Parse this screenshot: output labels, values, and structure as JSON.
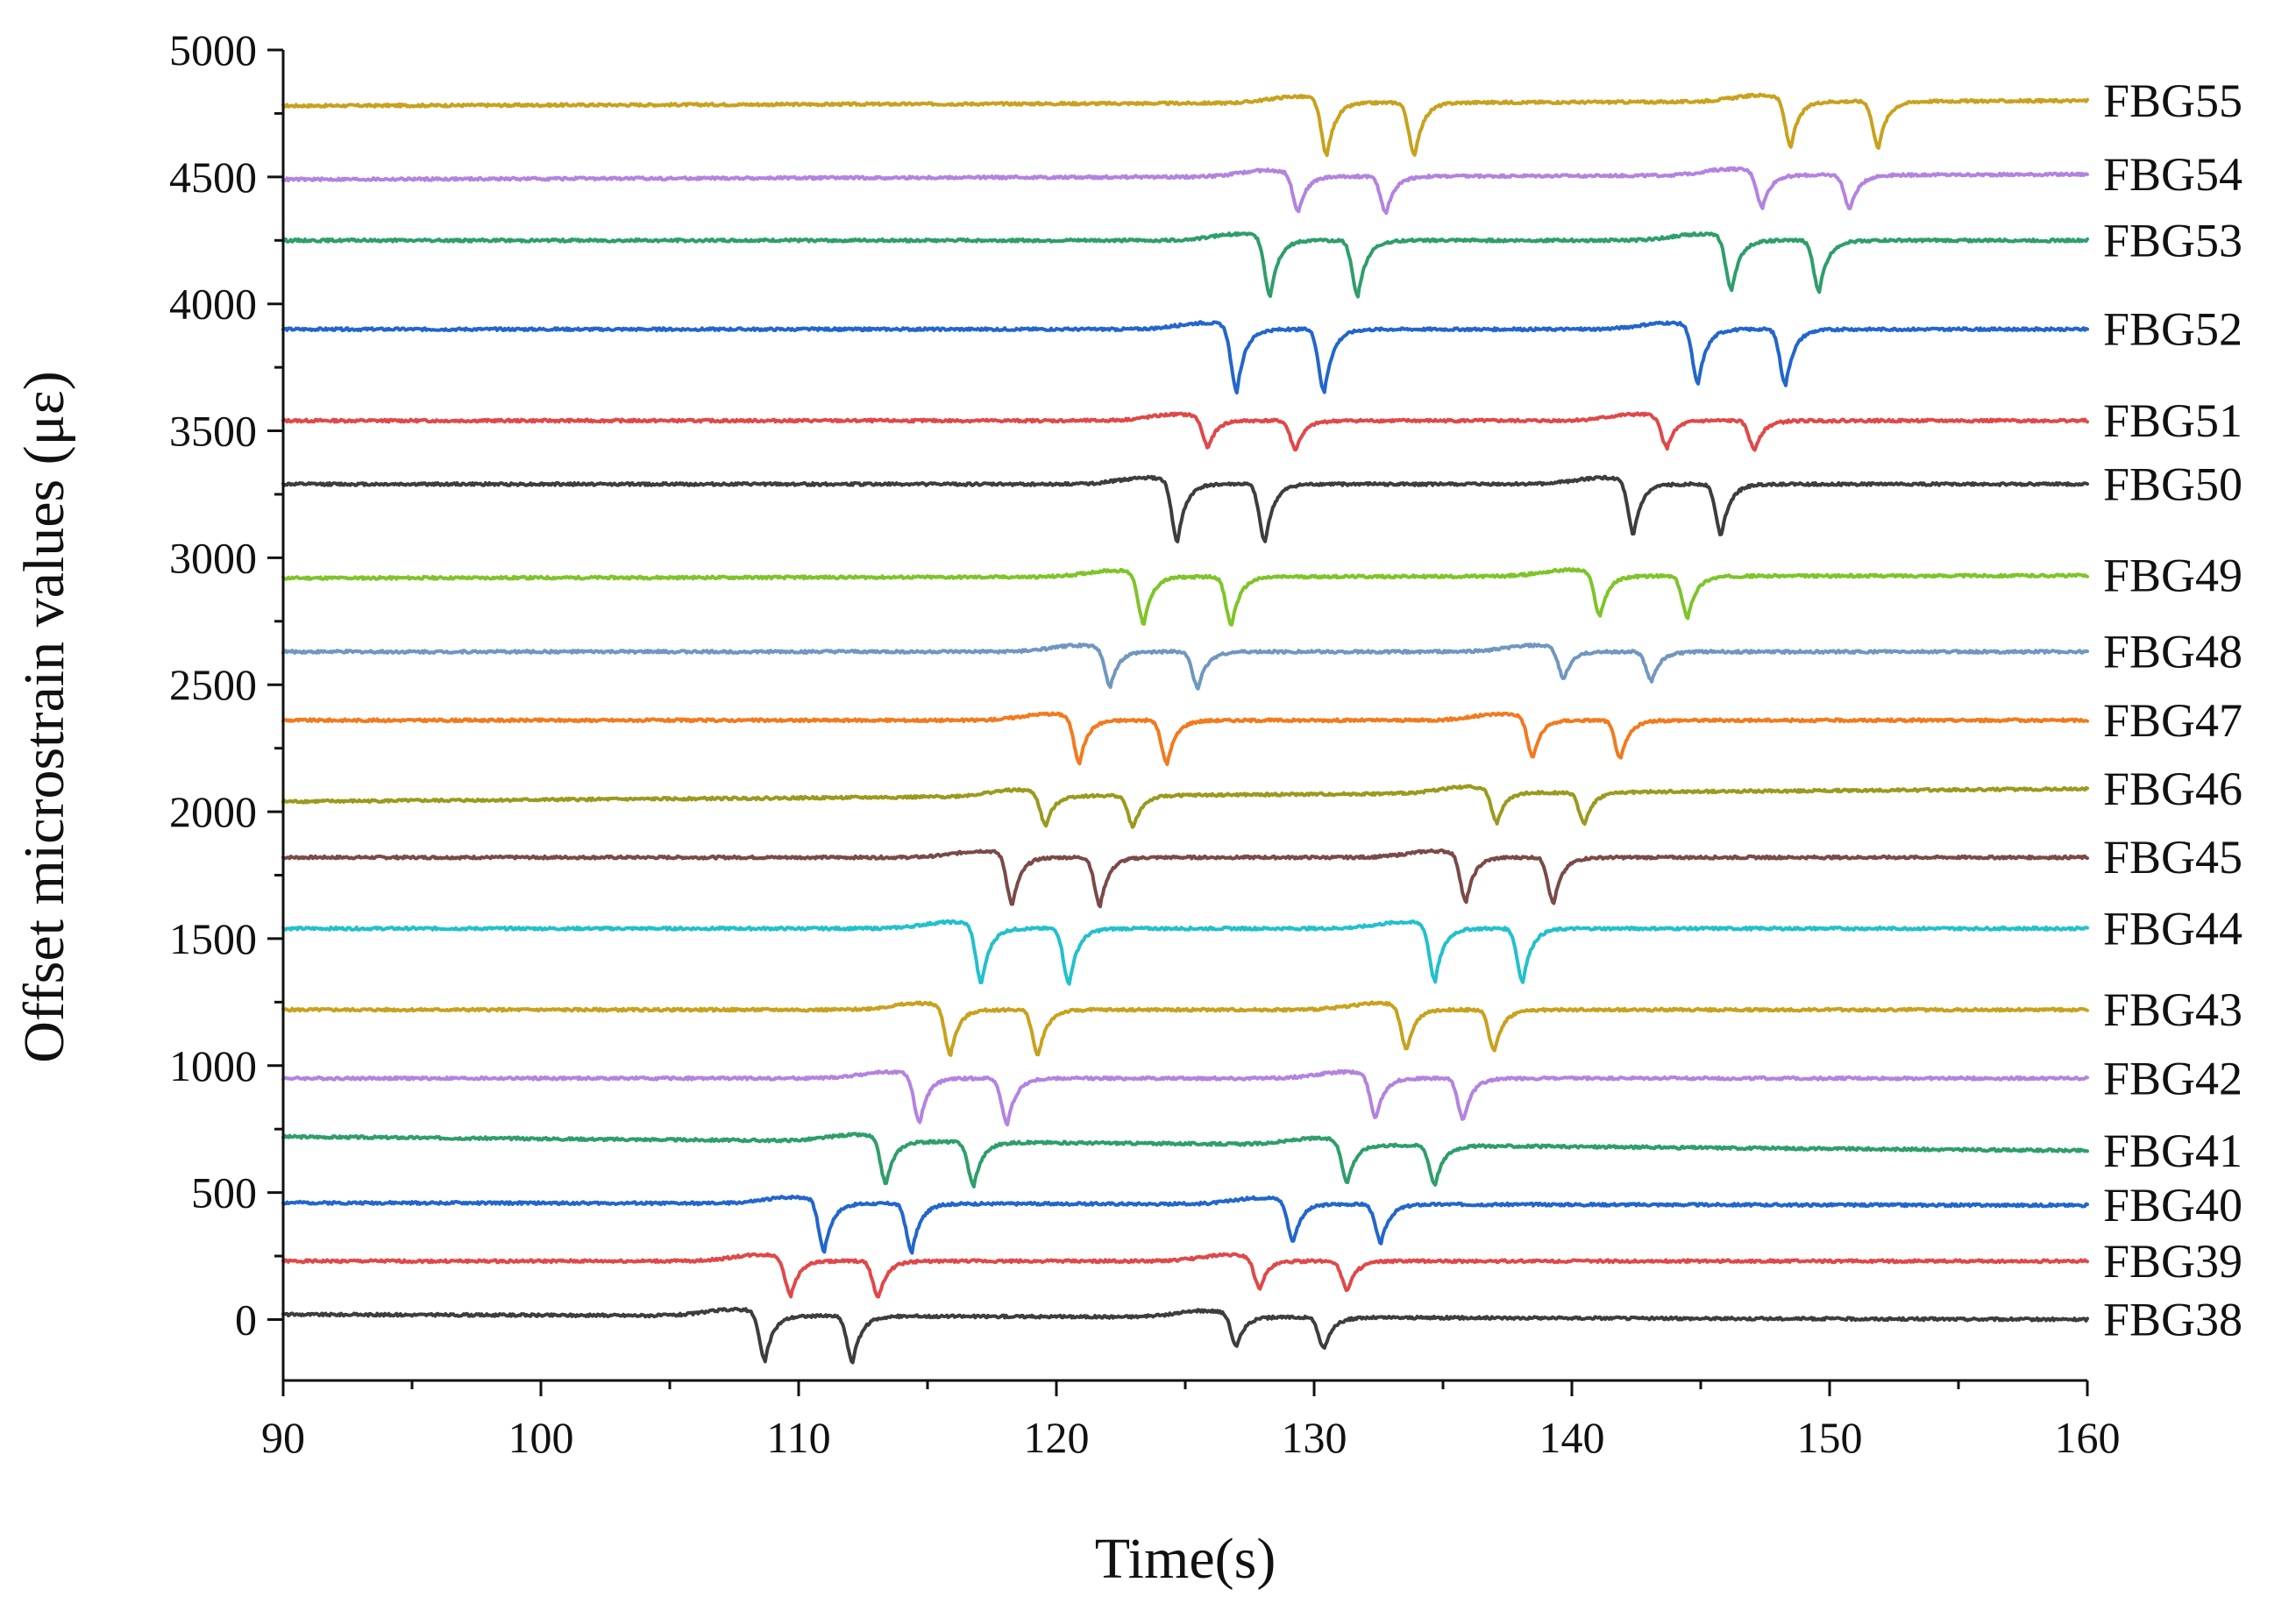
{
  "chart_data": {
    "type": "line",
    "title": "",
    "xlabel": "Time(s)",
    "ylabel": "Offset microstrain values (με)",
    "xlim": [
      90,
      160
    ],
    "ylim": [
      -240,
      5000
    ],
    "x_ticks": [
      90,
      100,
      110,
      120,
      130,
      140,
      150,
      160
    ],
    "y_ticks": [
      0,
      500,
      1000,
      1500,
      2000,
      2500,
      3000,
      3500,
      4000,
      4500,
      5000
    ],
    "grid": false,
    "legend": "right, label at end of each series",
    "dip_spacing_s": 3.4,
    "dip_width_s": 0.55,
    "series": [
      {
        "name": "FBG38",
        "color": "#3d3d3d",
        "baseline_start": 20,
        "baseline_end": 0,
        "dip1_start": 108.7,
        "dip2_start": 127.0,
        "depth1": 190,
        "depth2": 130
      },
      {
        "name": "FBG39",
        "color": "#e04848",
        "baseline_start": 230,
        "baseline_end": 230,
        "dip1_start": 109.7,
        "dip2_start": 127.9,
        "depth1": 150,
        "depth2": 120
      },
      {
        "name": "FBG40",
        "color": "#2266cc",
        "baseline_start": 460,
        "baseline_end": 450,
        "dip1_start": 111.0,
        "dip2_start": 129.2,
        "depth1": 200,
        "depth2": 160
      },
      {
        "name": "FBG41",
        "color": "#2e9e6a",
        "baseline_start": 720,
        "baseline_end": 665,
        "dip1_start": 113.4,
        "dip2_start": 131.3,
        "depth1": 180,
        "depth2": 160
      },
      {
        "name": "FBG42",
        "color": "#b383e0",
        "baseline_start": 950,
        "baseline_end": 950,
        "dip1_start": 114.7,
        "dip2_start": 132.4,
        "depth1": 190,
        "depth2": 170
      },
      {
        "name": "FBG43",
        "color": "#c8a21e",
        "baseline_start": 1220,
        "baseline_end": 1220,
        "dip1_start": 115.9,
        "dip2_start": 133.6,
        "depth1": 190,
        "depth2": 170
      },
      {
        "name": "FBG44",
        "color": "#22c0cc",
        "baseline_start": 1540,
        "baseline_end": 1540,
        "dip1_start": 117.1,
        "dip2_start": 134.7,
        "depth1": 230,
        "depth2": 220
      },
      {
        "name": "FBG45",
        "color": "#7a4a48",
        "baseline_start": 1820,
        "baseline_end": 1820,
        "dip1_start": 118.3,
        "dip2_start": 135.9,
        "depth1": 200,
        "depth2": 190
      },
      {
        "name": "FBG46",
        "color": "#9a9a1e",
        "baseline_start": 2040,
        "baseline_end": 2090,
        "dip1_start": 119.6,
        "dip2_start": 137.1,
        "depth1": 130,
        "depth2": 130
      },
      {
        "name": "FBG47",
        "color": "#f27a1e",
        "baseline_start": 2360,
        "baseline_end": 2360,
        "dip1_start": 120.9,
        "dip2_start": 138.5,
        "depth1": 180,
        "depth2": 160
      },
      {
        "name": "FBG48",
        "color": "#6f97bf",
        "baseline_start": 2630,
        "baseline_end": 2630,
        "dip1_start": 122.1,
        "dip2_start": 139.7,
        "depth1": 150,
        "depth2": 120
      },
      {
        "name": "FBG49",
        "color": "#7ec42a",
        "baseline_start": 2920,
        "baseline_end": 2930,
        "dip1_start": 123.4,
        "dip2_start": 141.1,
        "depth1": 200,
        "depth2": 170
      },
      {
        "name": "FBG50",
        "color": "#3d3d3d",
        "baseline_start": 3290,
        "baseline_end": 3290,
        "dip1_start": 124.7,
        "dip2_start": 142.4,
        "depth1": 240,
        "depth2": 210
      },
      {
        "name": "FBG51",
        "color": "#e04848",
        "baseline_start": 3540,
        "baseline_end": 3540,
        "dip1_start": 125.9,
        "dip2_start": 143.7,
        "depth1": 120,
        "depth2": 120
      },
      {
        "name": "FBG52",
        "color": "#2266cc",
        "baseline_start": 3900,
        "baseline_end": 3900,
        "dip1_start": 127.0,
        "dip2_start": 144.9,
        "depth1": 260,
        "depth2": 230
      },
      {
        "name": "FBG53",
        "color": "#2e9e6a",
        "baseline_start": 4250,
        "baseline_end": 4250,
        "dip1_start": 128.3,
        "dip2_start": 146.2,
        "depth1": 230,
        "depth2": 210
      },
      {
        "name": "FBG54",
        "color": "#b383e0",
        "baseline_start": 4490,
        "baseline_end": 4510,
        "dip1_start": 129.4,
        "dip2_start": 147.4,
        "depth1": 150,
        "depth2": 140
      },
      {
        "name": "FBG55",
        "color": "#c8a21e",
        "baseline_start": 4780,
        "baseline_end": 4800,
        "dip1_start": 130.5,
        "dip2_start": 148.5,
        "depth1": 220,
        "depth2": 190
      }
    ]
  }
}
